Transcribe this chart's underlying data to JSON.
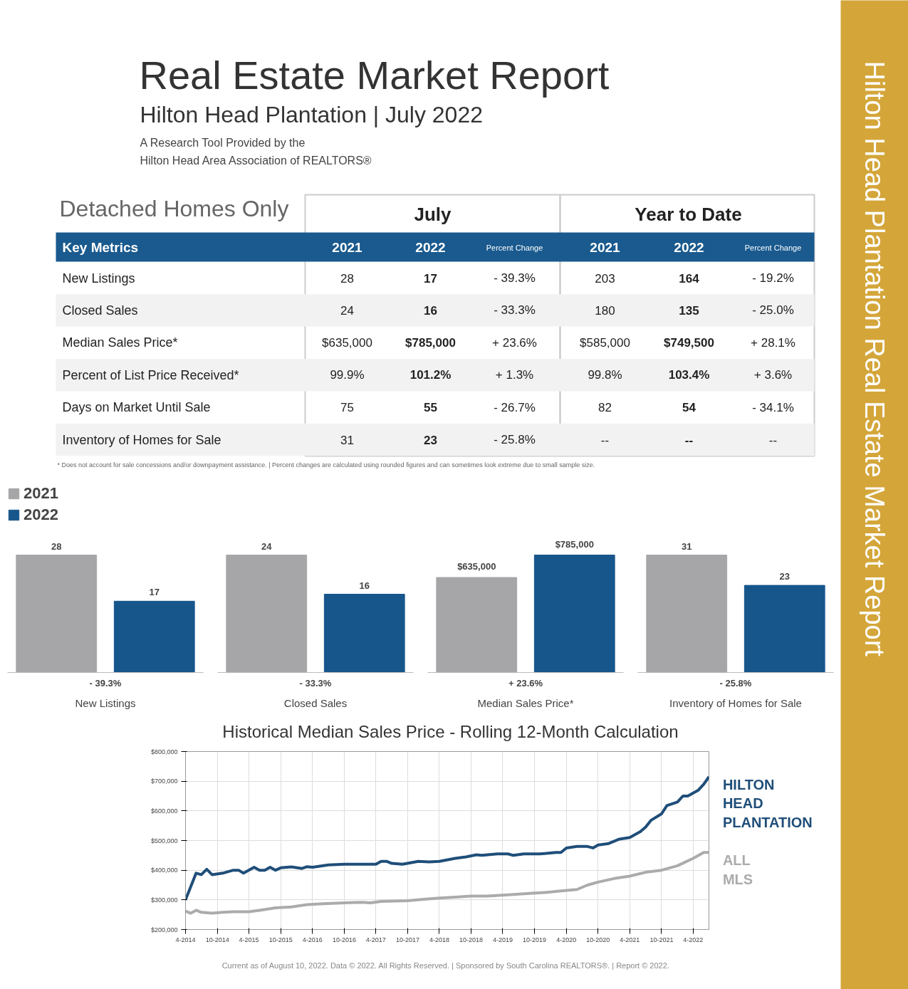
{
  "chart_data": [
    {
      "type": "other",
      "title": "Real Estate Market Report",
      "subtitle": "Hilton Head Plantation | July 2022",
      "annotations": [
        "A Research Tool Provided by the",
        "Hilton Head Area Association of REALTORS®"
      ]
    },
    {
      "type": "other",
      "title": "Detached Homes Only",
      "categories": [
        "Key Metrics",
        "2021",
        "2022",
        "Percent Change",
        "2021",
        "2022",
        "Percent Change"
      ],
      "y_categories": [
        "New Listings",
        "Closed Sales",
        "Median Sales Price*",
        "Percent of List Price Received*",
        "Days on Market Until Sale",
        "Inventory of Homes for Sale"
      ],
      "cell_labels": [
        [
          "28",
          "17",
          "- 39.3%",
          "203",
          "164",
          "- 19.2%"
        ],
        [
          "24",
          "16",
          "- 33.3%",
          "180",
          "135",
          "- 25.0%"
        ],
        [
          "$635,000",
          "$785,000",
          "+ 23.6%",
          "$585,000",
          "$749,500",
          "+ 28.1%"
        ],
        [
          "99.9%",
          "101.2%",
          "+ 1.3%",
          "99.8%",
          "103.4%",
          "+ 3.6%"
        ],
        [
          "75",
          "55",
          "- 26.7%",
          "82",
          "54",
          "- 34.1%"
        ],
        [
          "31",
          "23",
          "- 25.8%",
          "--",
          "--",
          "--"
        ]
      ],
      "annotations": [
        "July",
        "Year to Date",
        "* Does not account for sale concessions and/or downpayment assistance.  |  Percent changes are calculated using rounded figures and can sometimes look extreme due to small sample size."
      ]
    },
    {
      "type": "bar",
      "categories": [
        null
      ],
      "xlabel": "New Listings",
      "annotations": [
        "- 39.3%"
      ],
      "legend": "top left",
      "data_labels": true,
      "series": [
        {
          "name": "2021",
          "color": "#a6a6a8",
          "values": [
            28
          ]
        },
        {
          "name": "2022",
          "color": "#17568b",
          "values": [
            17
          ]
        }
      ]
    },
    {
      "type": "bar",
      "categories": [
        null
      ],
      "xlabel": "Closed Sales",
      "annotations": [
        "- 33.3%"
      ],
      "data_labels": true,
      "series": [
        {
          "color": "#a6a6a8",
          "values": [
            24
          ]
        },
        {
          "color": "#17568b",
          "values": [
            16
          ]
        }
      ]
    },
    {
      "type": "bar",
      "categories": [
        null
      ],
      "xlabel": "Median Sales Price*",
      "annotations": [
        "+ 23.6%"
      ],
      "series": [
        {
          "color": "#a6a6a8",
          "values": [
            635000
          ],
          "value_labels": [
            "$635,000"
          ]
        },
        {
          "color": "#17568b",
          "values": [
            785000
          ],
          "value_labels": [
            "$785,000"
          ]
        }
      ]
    },
    {
      "type": "bar",
      "categories": [
        null
      ],
      "xlabel": "Inventory of Homes for Sale",
      "annotations": [
        "- 25.8%"
      ],
      "data_labels": true,
      "series": [
        {
          "color": "#a6a6a8",
          "values": [
            31
          ]
        },
        {
          "color": "#17568b",
          "values": [
            23
          ]
        }
      ]
    },
    {
      "type": "line",
      "title": "Historical Median Sales Price - Rolling 12-Month Calculation",
      "grid": true,
      "xlim": [
        "2014-04",
        "2022-07"
      ],
      "xticks": [
        {
          "value": "2014-04",
          "label": "4-2014"
        },
        {
          "value": "2014-10",
          "label": "10-2014"
        },
        {
          "value": "2015-04",
          "label": "4-2015"
        },
        {
          "value": "2015-10",
          "label": "10-2015"
        },
        {
          "value": "2016-04",
          "label": "4-2016"
        },
        {
          "value": "2016-10",
          "label": "10-2016"
        },
        {
          "value": "2017-04",
          "label": "4-2017"
        },
        {
          "value": "2017-10",
          "label": "10-2017"
        },
        {
          "value": "2018-04",
          "label": "4-2018"
        },
        {
          "value": "2018-10",
          "label": "10-2018"
        },
        {
          "value": "2019-04",
          "label": "4-2019"
        },
        {
          "value": "2019-10",
          "label": "10-2019"
        },
        {
          "value": "2020-04",
          "label": "4-2020"
        },
        {
          "value": "2020-10",
          "label": "10-2020"
        },
        {
          "value": "2021-04",
          "label": "4-2021"
        },
        {
          "value": "2021-10",
          "label": "10-2021"
        },
        {
          "value": "2022-04",
          "label": "4-2022"
        }
      ],
      "ylim": [
        200000,
        800000
      ],
      "yticks": [
        {
          "value": 200000,
          "label": "$200,000"
        },
        {
          "value": 300000,
          "label": "$300,000"
        },
        {
          "value": 400000,
          "label": "$400,000"
        },
        {
          "value": 500000,
          "label": "$500,000"
        },
        {
          "value": 600000,
          "label": "$600,000"
        },
        {
          "value": 700000,
          "label": "$700,000"
        },
        {
          "value": 800000,
          "label": "$800,000"
        }
      ],
      "annotations": [
        "Current as of August 10, 2022. Data © 2022. All Rights Reserved.  |  Sponsored by South Carolina REALTORS®.  |  Report © 2022."
      ],
      "series": [
        {
          "name": "HILTON HEAD PLANTATION",
          "color": "#1f4e79",
          "x": [
            "2014-04",
            "2014-06",
            "2014-07",
            "2014-08",
            "2014-09",
            "2014-11",
            "2015-01",
            "2015-02",
            "2015-03",
            "2015-05",
            "2015-06",
            "2015-07",
            "2015-08",
            "2015-09",
            "2015-10",
            "2015-12",
            "2016-02",
            "2016-03",
            "2016-04",
            "2016-07",
            "2016-10",
            "2017-01",
            "2017-04",
            "2017-05",
            "2017-06",
            "2017-07",
            "2017-09",
            "2017-12",
            "2018-02",
            "2018-04",
            "2018-07",
            "2018-09",
            "2018-11",
            "2018-12",
            "2019-03",
            "2019-05",
            "2019-06",
            "2019-08",
            "2019-11",
            "2020-02",
            "2020-03",
            "2020-04",
            "2020-06",
            "2020-08",
            "2020-09",
            "2020-10",
            "2020-12",
            "2021-02",
            "2021-04",
            "2021-06",
            "2021-07",
            "2021-08",
            "2021-10",
            "2021-11",
            "2022-01",
            "2022-02",
            "2022-03",
            "2022-05",
            "2022-06",
            "2022-07"
          ],
          "values": [
            300000,
            390000,
            385000,
            403000,
            385000,
            390000,
            400000,
            400000,
            390000,
            410000,
            400000,
            400000,
            410000,
            400000,
            408000,
            411000,
            406000,
            412000,
            410000,
            418000,
            420000,
            420000,
            420000,
            430000,
            430000,
            423000,
            420000,
            430000,
            428000,
            430000,
            440000,
            445000,
            452000,
            450000,
            455000,
            455000,
            450000,
            455000,
            455000,
            460000,
            460000,
            475000,
            480000,
            480000,
            475000,
            485000,
            490000,
            505000,
            510000,
            530000,
            545000,
            568000,
            590000,
            618000,
            630000,
            650000,
            650000,
            670000,
            690000,
            715000
          ]
        },
        {
          "name": "ALL MLS",
          "color": "#ababab",
          "x": [
            "2014-04",
            "2014-05",
            "2014-06",
            "2014-07",
            "2014-09",
            "2014-11",
            "2015-01",
            "2015-04",
            "2015-06",
            "2015-09",
            "2015-12",
            "2016-03",
            "2016-06",
            "2016-10",
            "2017-01",
            "2017-03",
            "2017-05",
            "2017-10",
            "2018-01",
            "2018-04",
            "2018-07",
            "2018-10",
            "2019-01",
            "2019-05",
            "2019-09",
            "2019-12",
            "2020-03",
            "2020-06",
            "2020-08",
            "2020-10",
            "2021-01",
            "2021-04",
            "2021-07",
            "2021-10",
            "2022-01",
            "2022-04",
            "2022-06",
            "2022-07"
          ],
          "values": [
            262000,
            255000,
            265000,
            258000,
            255000,
            258000,
            260000,
            260000,
            265000,
            273000,
            276000,
            284000,
            287000,
            290000,
            292000,
            290000,
            295000,
            297000,
            302000,
            306000,
            309000,
            313000,
            313000,
            317000,
            322000,
            325000,
            330000,
            335000,
            350000,
            360000,
            372000,
            380000,
            393000,
            400000,
            415000,
            440000,
            460000,
            460000
          ]
        }
      ]
    },
    {
      "type": "other",
      "title": "Hilton Head Plantation Real Estate Market Report"
    }
  ]
}
